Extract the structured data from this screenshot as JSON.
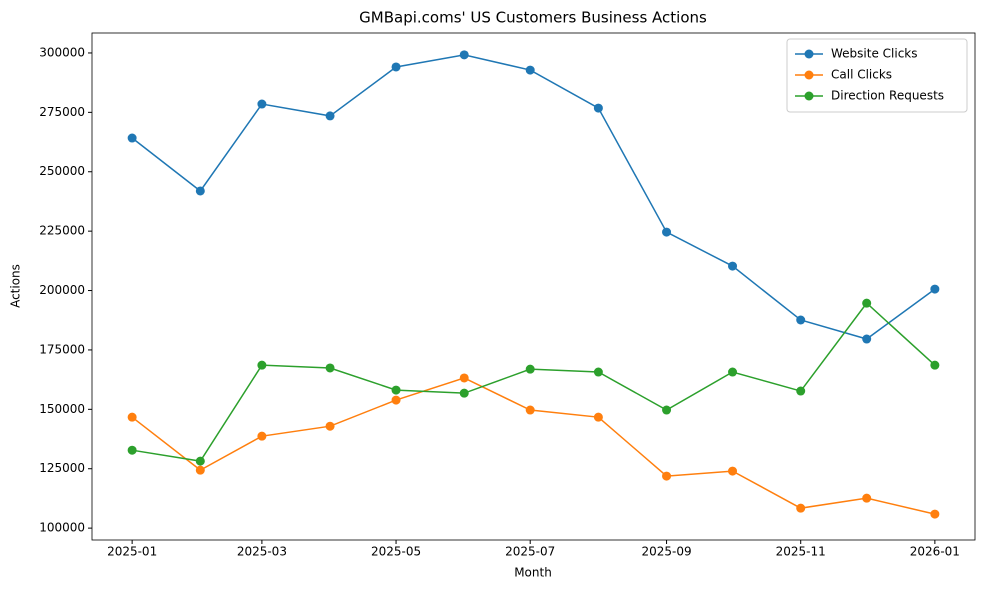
{
  "chart_data": {
    "type": "line",
    "title": "GMBapi.coms' US Customers Business Actions",
    "x_label": "Month",
    "y_label": "Actions",
    "x": [
      "2025-01",
      "2025-02",
      "2025-03",
      "2025-04",
      "2025-05",
      "2025-06",
      "2025-07",
      "2025-08",
      "2025-09",
      "2025-10",
      "2025-11",
      "2025-12",
      "2026-01"
    ],
    "xticks": [
      "2025-01",
      "2025-03",
      "2025-05",
      "2025-07",
      "2025-09",
      "2025-11",
      "2026-01"
    ],
    "ylim": [
      95000,
      308400
    ],
    "yticks": [
      100000,
      125000,
      150000,
      175000,
      200000,
      225000,
      250000,
      275000,
      300000
    ],
    "legend": "upper right",
    "series": [
      {
        "name": "Website Clicks",
        "color": "#1f77b4",
        "values": [
          264200,
          241900,
          278500,
          273500,
          294100,
          299200,
          292800,
          276800,
          224600,
          210300,
          187600,
          179600,
          200600
        ]
      },
      {
        "name": "Call Clicks",
        "color": "#ff7f0e",
        "values": [
          146700,
          124400,
          138700,
          142900,
          153900,
          163200,
          149700,
          146700,
          121900,
          124000,
          108400,
          112600,
          105900
        ]
      },
      {
        "name": "Direction Requests",
        "color": "#2ca02c",
        "values": [
          132800,
          128200,
          168600,
          167400,
          158100,
          156800,
          166900,
          165700,
          149700,
          165700,
          157700,
          194700,
          168600
        ]
      }
    ]
  }
}
